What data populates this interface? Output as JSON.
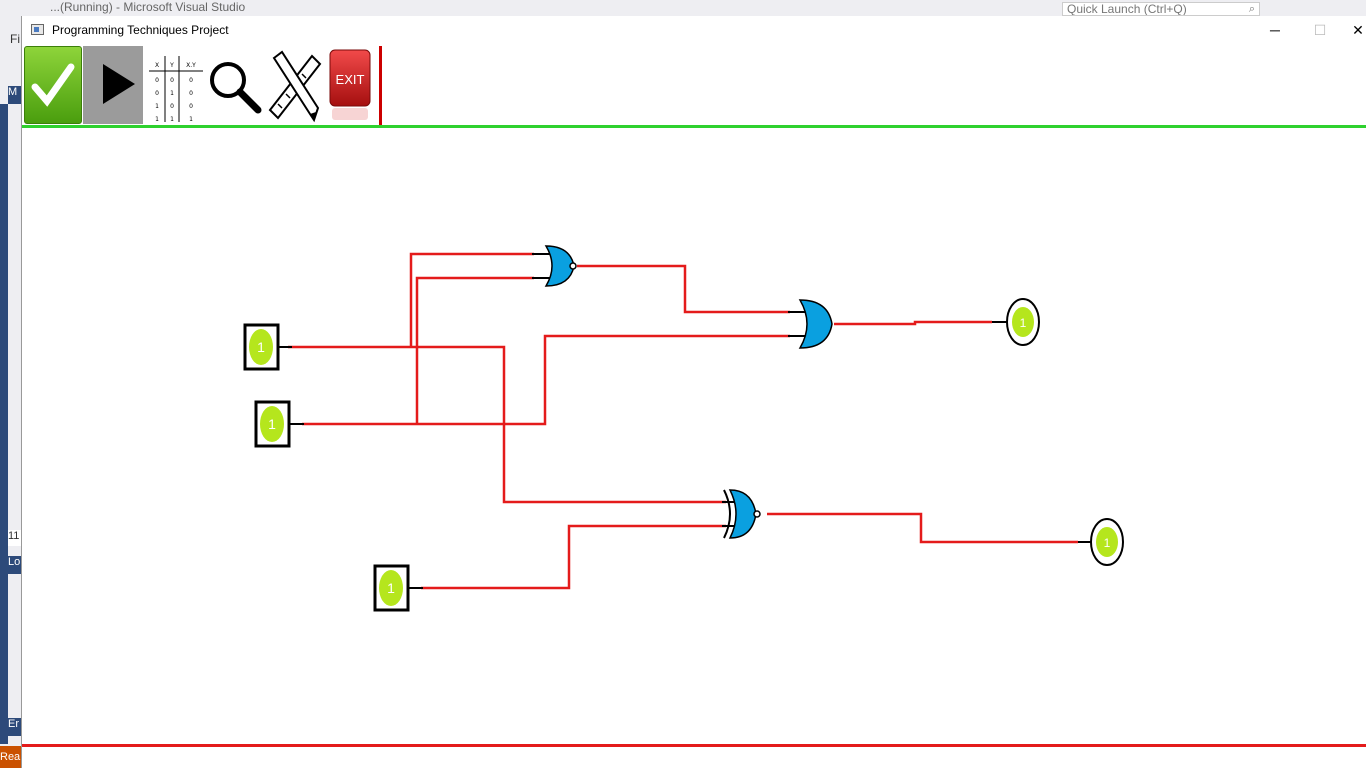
{
  "ide": {
    "title_text": "...(Running) - Microsoft Visual Studio",
    "quick_launch_placeholder": "Quick Launch (Ctrl+Q)",
    "file_menu": "Fi",
    "panel_m": "M",
    "panel_num": "11",
    "panel_lo": "Lo",
    "panel_er": "Er",
    "status": "Rea"
  },
  "window": {
    "title": "Programming Techniques Project",
    "minimize": "─",
    "maximize": "☐",
    "close": "✕"
  },
  "toolbar": {
    "items": [
      {
        "name": "validate-tool",
        "icon": "checkmark-icon"
      },
      {
        "name": "simulate-tool",
        "icon": "play-icon"
      },
      {
        "name": "truth-table-tool",
        "icon": "truth-table-icon"
      },
      {
        "name": "zoom-tool",
        "icon": "magnifier-icon"
      },
      {
        "name": "edit-tool",
        "icon": "pencil-ruler-icon"
      },
      {
        "name": "exit-tool",
        "icon": "exit-icon",
        "label": "EXIT"
      }
    ],
    "truth_table": {
      "headers": [
        "X",
        "Y",
        "X.Y"
      ],
      "rows": [
        [
          "0",
          "0",
          "0"
        ],
        [
          "0",
          "1",
          "0"
        ],
        [
          "1",
          "0",
          "0"
        ],
        [
          "1",
          "1",
          "1"
        ]
      ]
    }
  },
  "circuit": {
    "inputs": [
      {
        "name": "input-switch-1",
        "value": "1"
      },
      {
        "name": "input-switch-2",
        "value": "1"
      },
      {
        "name": "input-switch-3",
        "value": "1"
      }
    ],
    "outputs": [
      {
        "name": "output-led-1",
        "value": "1"
      },
      {
        "name": "output-led-2",
        "value": "1"
      }
    ],
    "gates": [
      "nor-gate",
      "or-gate",
      "xnor-gate"
    ],
    "colors": {
      "wire": "#e41b1b",
      "gate": "#0aa0e0",
      "led": "#b5e61d",
      "toolbar_line": "#2ed12e"
    }
  }
}
